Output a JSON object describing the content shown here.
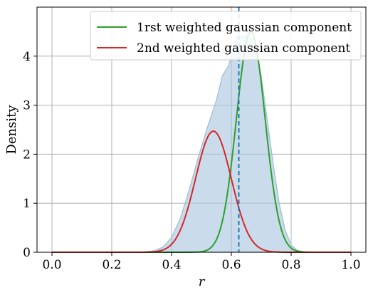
{
  "chart_data": {
    "type": "area",
    "xlabel": "r",
    "ylabel": "Density",
    "xlim": [
      -0.05,
      1.05
    ],
    "ylim": [
      0,
      5.0
    ],
    "x_ticks": [
      0.0,
      0.2,
      0.4,
      0.6,
      0.8,
      1.0
    ],
    "x_tick_labels": [
      "0.0",
      "0.2",
      "0.4",
      "0.6",
      "0.8",
      "1.0"
    ],
    "y_ticks": [
      0,
      1,
      2,
      3,
      4
    ],
    "y_tick_labels": [
      "0",
      "1",
      "2",
      "3",
      "4"
    ],
    "grid": true,
    "legend_position": "top-right",
    "vline": {
      "x": 0.625,
      "style": "dashed",
      "color": "#1f77b4"
    },
    "density_area": {
      "color": "#aac6de",
      "points": [
        [
          0.0,
          0
        ],
        [
          0.3,
          0
        ],
        [
          0.34,
          0.03
        ],
        [
          0.37,
          0.1
        ],
        [
          0.4,
          0.3
        ],
        [
          0.43,
          0.7
        ],
        [
          0.46,
          1.3
        ],
        [
          0.49,
          1.95
        ],
        [
          0.52,
          2.55
        ],
        [
          0.55,
          3.1
        ],
        [
          0.57,
          3.6
        ],
        [
          0.59,
          3.8
        ],
        [
          0.6,
          4.0
        ],
        [
          0.62,
          4.4
        ],
        [
          0.64,
          4.4
        ],
        [
          0.66,
          4.45
        ],
        [
          0.68,
          4.2
        ],
        [
          0.7,
          3.6
        ],
        [
          0.72,
          2.7
        ],
        [
          0.74,
          1.8
        ],
        [
          0.76,
          1.0
        ],
        [
          0.78,
          0.45
        ],
        [
          0.8,
          0.15
        ],
        [
          0.82,
          0.04
        ],
        [
          0.85,
          0
        ],
        [
          1.0,
          0
        ]
      ]
    },
    "series": [
      {
        "name": "1rst weighted gaussian component",
        "color": "#2ca02c",
        "mean": 0.665,
        "sd": 0.048,
        "peak": 4.5
      },
      {
        "name": "2nd weighted gaussian component",
        "color": "#d62728",
        "mean": 0.54,
        "sd": 0.06,
        "peak": 2.47
      }
    ]
  }
}
